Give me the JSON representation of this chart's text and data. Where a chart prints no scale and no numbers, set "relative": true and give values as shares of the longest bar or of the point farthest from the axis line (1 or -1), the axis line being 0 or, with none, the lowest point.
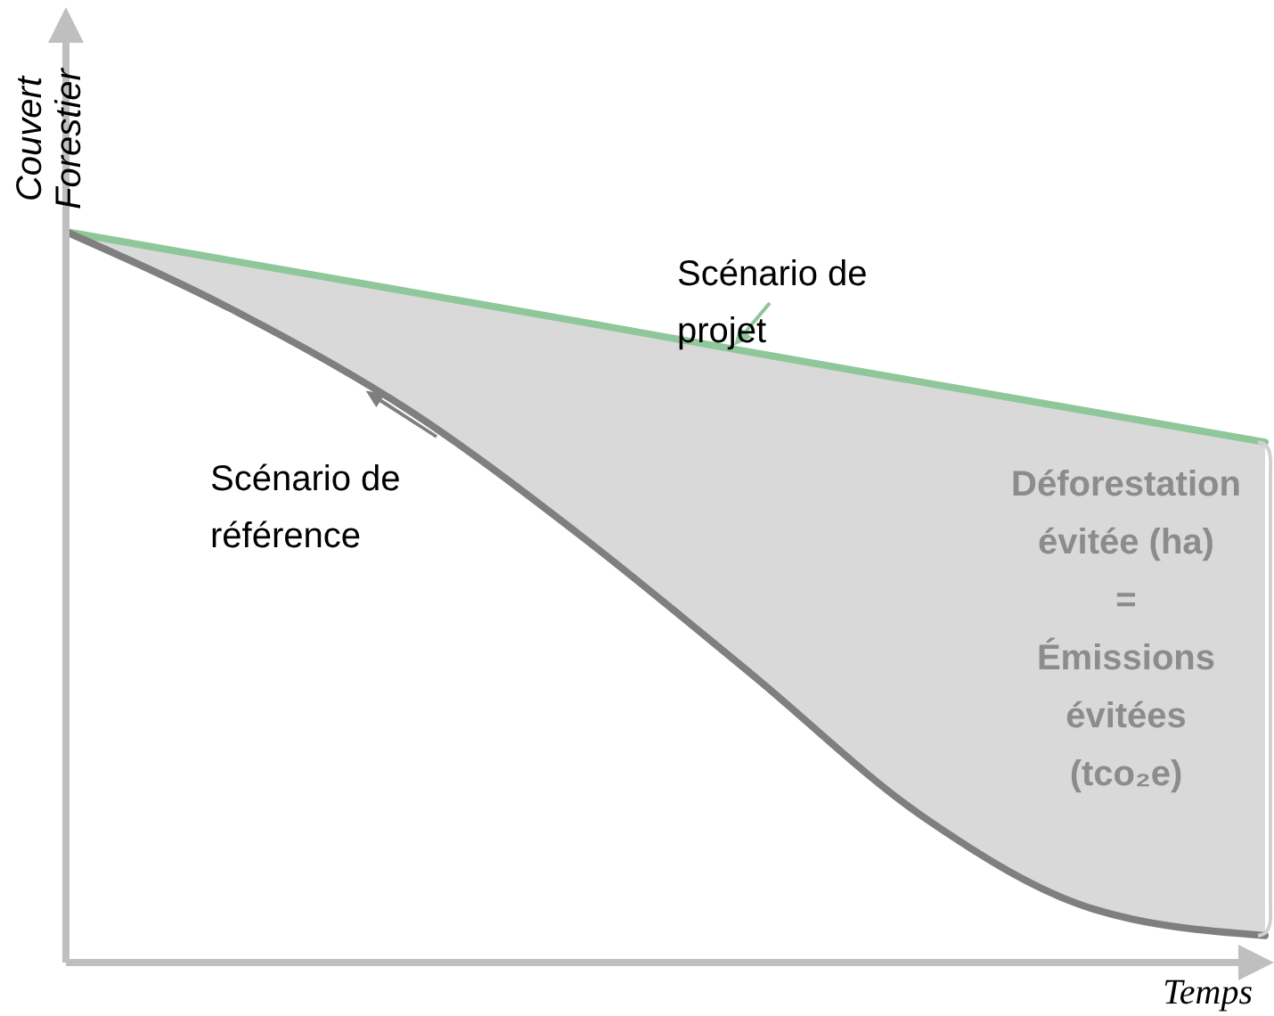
{
  "chart_data": {
    "type": "line",
    "relative": true,
    "xlabel": "Temps",
    "ylabel": "Couvert\nForestier",
    "categories": [
      null,
      null,
      null,
      null,
      null,
      null,
      null,
      null
    ],
    "series": [
      {
        "name": "Scénario de projet",
        "color": "#8fc79a",
        "values": [
          1,
          0.959,
          0.918,
          0.877,
          0.835,
          0.794,
          0.753,
          0.712
        ],
        "lower": [
          1,
          0.89,
          0.756,
          0.585,
          0.395,
          0.2,
          0.073,
          0.037
        ],
        "upper": [
          1,
          0.959,
          0.918,
          0.877,
          0.835,
          0.794,
          0.753,
          0.712
        ]
      },
      {
        "name": "Scénario de référence",
        "color": "#7f7f7f",
        "values": [
          1,
          0.89,
          0.756,
          0.585,
          0.395,
          0.2,
          0.073,
          0.037
        ]
      }
    ],
    "annotations": [
      "Déforestation\névitée (ha)\n=\nÉmissions\névitées\n(tco₂e)"
    ],
    "marker": "none",
    "line_style": "solid"
  }
}
